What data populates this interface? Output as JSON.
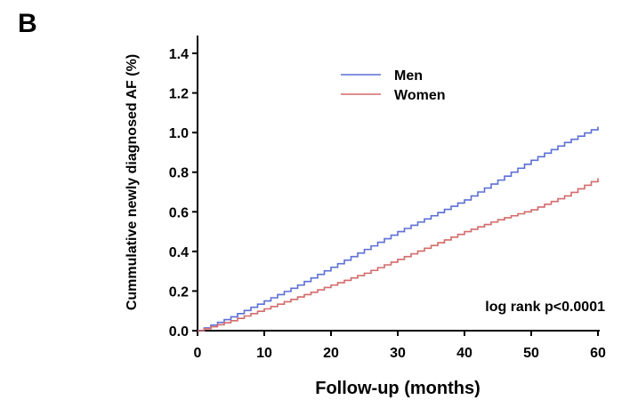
{
  "panel_label": "B",
  "chart_data": {
    "type": "line",
    "step": true,
    "xlabel": "Follow-up (months)",
    "ylabel": "Cummulative newly diagnosed AF (%)",
    "xlim": [
      0,
      60
    ],
    "ylim": [
      0,
      1.4
    ],
    "xticks": [
      0,
      10,
      20,
      30,
      40,
      50,
      60
    ],
    "xtick_labels": [
      "0",
      "10",
      "20",
      "30",
      "40",
      "50",
      "60"
    ],
    "yticks": [
      0,
      0.2,
      0.4,
      0.6,
      0.8,
      1.0,
      1.2,
      1.4
    ],
    "ytick_labels": [
      "0.0",
      "0.2",
      "0.4",
      "0.6",
      "0.8",
      "1.0",
      "1.2",
      "1.4"
    ],
    "grid": false,
    "legend_position": "top-center",
    "series": [
      {
        "name": "Men",
        "color": "#5b6fd6",
        "x": [
          0,
          5,
          10,
          15,
          20,
          25,
          30,
          35,
          40,
          45,
          50,
          55,
          60
        ],
        "y": [
          0,
          0.07,
          0.15,
          0.23,
          0.32,
          0.41,
          0.5,
          0.58,
          0.66,
          0.76,
          0.86,
          0.95,
          1.03
        ]
      },
      {
        "name": "Women",
        "color": "#d46a6a",
        "x": [
          0,
          5,
          10,
          15,
          20,
          25,
          30,
          35,
          40,
          45,
          50,
          55,
          60
        ],
        "y": [
          0,
          0.05,
          0.11,
          0.17,
          0.23,
          0.29,
          0.36,
          0.43,
          0.5,
          0.56,
          0.61,
          0.68,
          0.77
        ]
      }
    ],
    "annotations": [
      {
        "text": "log rank p<0.0001"
      }
    ]
  }
}
